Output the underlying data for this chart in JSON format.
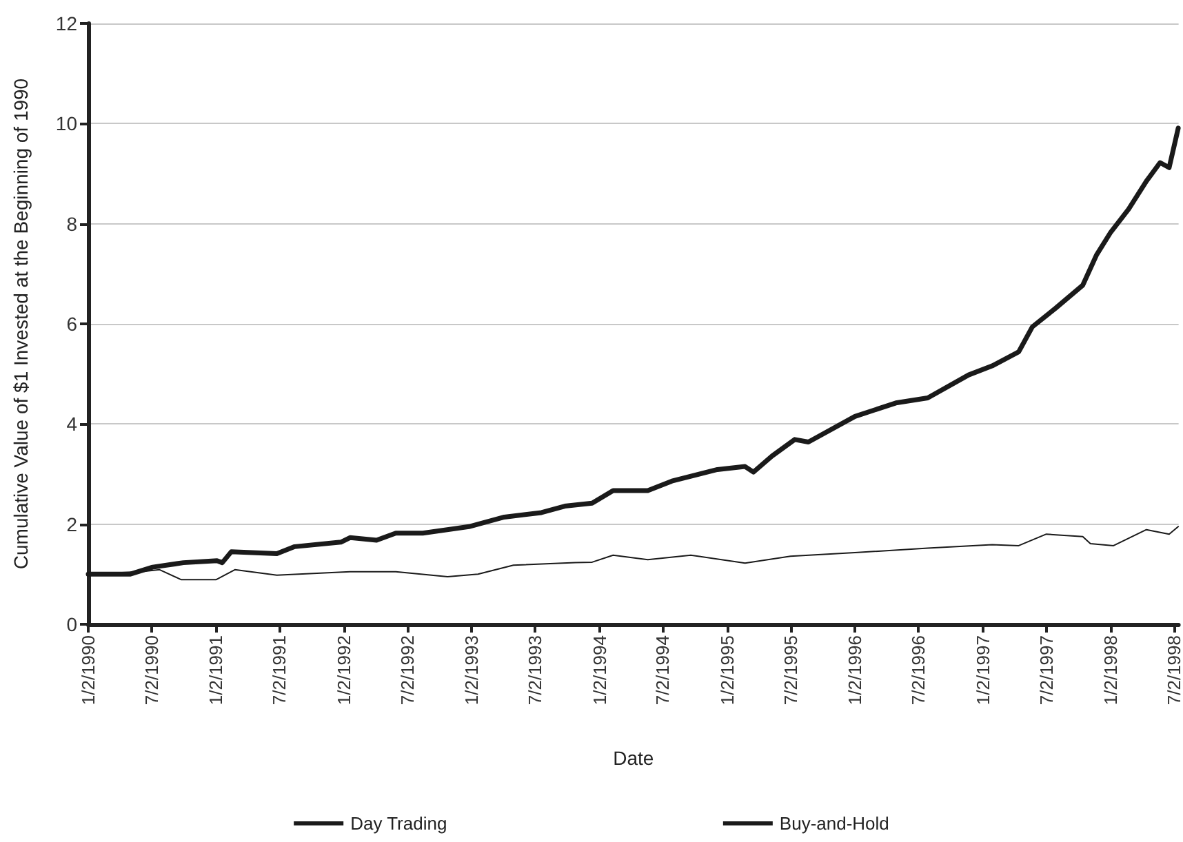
{
  "chart_data": {
    "type": "line",
    "xlabel": "Date",
    "ylabel": "Cumulative Value of $1 Invested at the Beginning of 1990",
    "xlim": [
      "1990-01-02",
      "1998-07-15"
    ],
    "xticks": [
      {
        "value": "1990-01-02",
        "label": "1/2/1990"
      },
      {
        "value": "1990-07-02",
        "label": "7/2/1990"
      },
      {
        "value": "1991-01-02",
        "label": "1/2/1991"
      },
      {
        "value": "1991-07-02",
        "label": "7/2/1991"
      },
      {
        "value": "1992-01-02",
        "label": "1/2/1992"
      },
      {
        "value": "1992-07-02",
        "label": "7/2/1992"
      },
      {
        "value": "1993-01-02",
        "label": "1/2/1993"
      },
      {
        "value": "1993-07-02",
        "label": "7/2/1993"
      },
      {
        "value": "1994-01-02",
        "label": "1/2/1994"
      },
      {
        "value": "1994-07-02",
        "label": "7/2/1994"
      },
      {
        "value": "1995-01-02",
        "label": "1/2/1995"
      },
      {
        "value": "1995-07-02",
        "label": "7/2/1995"
      },
      {
        "value": "1996-01-02",
        "label": "1/2/1996"
      },
      {
        "value": "1996-07-02",
        "label": "7/2/1996"
      },
      {
        "value": "1997-01-02",
        "label": "1/2/1997"
      },
      {
        "value": "1997-07-02",
        "label": "7/2/1997"
      },
      {
        "value": "1998-01-02",
        "label": "1/2/1998"
      },
      {
        "value": "1998-07-02",
        "label": "7/2/1998"
      }
    ],
    "ylim": [
      0,
      12
    ],
    "yticks": [
      0,
      2,
      4,
      6,
      8,
      10,
      12
    ],
    "grid": "y",
    "legend": "bottom",
    "marker": "none",
    "line_style": "solid",
    "series": [
      {
        "name": "Day Trading",
        "color": "#1a1a1a",
        "x": [
          "1990-01-02",
          "1990-05-01",
          "1990-07-05",
          "1990-10-01",
          "1991-01-05",
          "1991-01-20",
          "1991-02-15",
          "1991-06-25",
          "1991-08-15",
          "1991-12-25",
          "1992-01-20",
          "1992-04-05",
          "1992-05-30",
          "1992-08-15",
          "1992-12-25",
          "1993-04-05",
          "1993-07-20",
          "1993-09-25",
          "1993-12-12",
          "1994-02-10",
          "1994-05-20",
          "1994-07-28",
          "1994-12-05",
          "1995-02-22",
          "1995-03-18",
          "1995-05-10",
          "1995-07-14",
          "1995-08-22",
          "1996-01-02",
          "1996-04-28",
          "1996-07-28",
          "1996-11-22",
          "1997-01-28",
          "1997-04-14",
          "1997-05-23",
          "1997-07-28",
          "1997-10-14",
          "1997-11-22",
          "1998-01-02",
          "1998-02-22",
          "1998-04-14",
          "1998-05-23",
          "1998-06-18",
          "1998-07-14"
        ],
        "values": [
          1.0,
          1.0,
          1.14,
          1.23,
          1.27,
          1.23,
          1.45,
          1.41,
          1.55,
          1.64,
          1.73,
          1.68,
          1.82,
          1.82,
          1.95,
          2.14,
          2.23,
          2.36,
          2.42,
          2.67,
          2.67,
          2.86,
          3.09,
          3.15,
          3.04,
          3.36,
          3.69,
          3.64,
          4.15,
          4.42,
          4.52,
          4.98,
          5.16,
          5.44,
          5.94,
          6.31,
          6.77,
          7.37,
          7.83,
          8.29,
          8.85,
          9.22,
          9.12,
          9.91
        ]
      },
      {
        "name": "Buy-and-Hold",
        "color": "#1a1a1a",
        "x": [
          "1990-01-02",
          "1990-06-01",
          "1990-07-25",
          "1990-09-25",
          "1991-01-02",
          "1991-02-25",
          "1991-06-25",
          "1992-01-20",
          "1992-05-30",
          "1992-10-25",
          "1993-01-20",
          "1993-05-01",
          "1993-10-25",
          "1993-12-12",
          "1994-02-10",
          "1994-05-20",
          "1994-09-20",
          "1995-02-22",
          "1995-07-02",
          "1996-01-02",
          "1996-07-28",
          "1997-01-28",
          "1997-04-14",
          "1997-07-02",
          "1997-10-14",
          "1997-11-05",
          "1998-01-10",
          "1998-04-14",
          "1998-06-18",
          "1998-07-14"
        ],
        "values": [
          1.0,
          1.05,
          1.09,
          0.89,
          0.89,
          1.09,
          0.98,
          1.05,
          1.05,
          0.95,
          1.0,
          1.18,
          1.23,
          1.24,
          1.38,
          1.29,
          1.38,
          1.22,
          1.36,
          1.43,
          1.52,
          1.59,
          1.57,
          1.8,
          1.75,
          1.61,
          1.57,
          1.89,
          1.8,
          1.95
        ]
      }
    ]
  }
}
